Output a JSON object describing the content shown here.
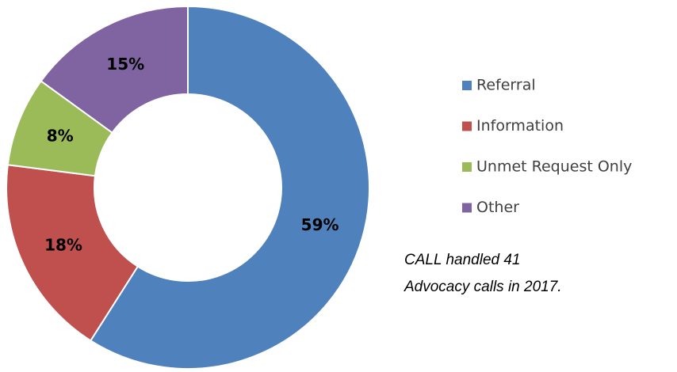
{
  "chart_data": {
    "type": "pie",
    "categories": [
      "Referral",
      "Information",
      "Unmet Request Only",
      "Other"
    ],
    "values": [
      59,
      18,
      8,
      15
    ],
    "value_labels": [
      "59%",
      "18%",
      "8%",
      "15%"
    ],
    "colors": [
      "#4f81bd",
      "#c0504d",
      "#9bbb59",
      "#8064a2"
    ],
    "donut": true,
    "legend": "right",
    "annotation": "CALL handled 41 Advocacy calls in 2017."
  }
}
